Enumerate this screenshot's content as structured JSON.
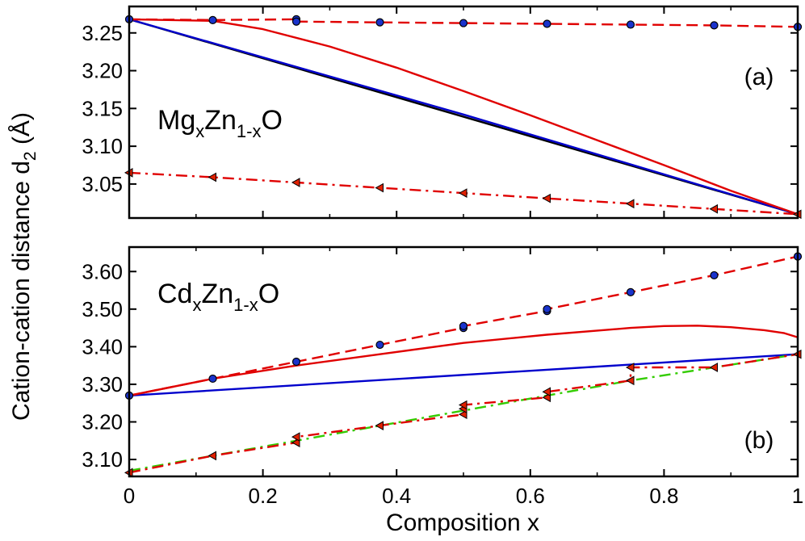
{
  "ylabel": "Cation-cation distance d",
  "ylabel_sub": "2",
  "ylabel_unit": " (Å)",
  "xlabel": "Composition x",
  "chart_data": [
    {
      "type": "line",
      "panel_label": "(a)",
      "compound": {
        "a": "Mg",
        "b": "x",
        "c": "Zn",
        "d": "1-x",
        "e": "O"
      },
      "xlim": [
        0,
        1
      ],
      "ylim": [
        3.005,
        3.285
      ],
      "x_ticks": [
        0,
        0.2,
        0.4,
        0.6,
        0.8,
        1
      ],
      "y_ticks": [
        3.05,
        3.1,
        3.15,
        3.2,
        3.25
      ],
      "y_tick_labels": [
        "3.05",
        "3.10",
        "3.15",
        "3.20",
        "3.25"
      ],
      "series": [
        {
          "color": "#000000",
          "style": "solid",
          "x": [
            0,
            1
          ],
          "y": [
            3.268,
            3.01
          ]
        },
        {
          "color": "#0000cc",
          "style": "solid",
          "x": [
            0,
            0.5,
            1
          ],
          "y": [
            3.268,
            3.142,
            3.01
          ]
        },
        {
          "color": "#e00000",
          "style": "solid",
          "x": [
            0,
            0.125,
            0.2,
            0.3,
            0.4,
            0.5,
            0.6,
            0.7,
            0.8,
            0.9,
            1
          ],
          "y": [
            3.268,
            3.266,
            3.255,
            3.232,
            3.204,
            3.173,
            3.141,
            3.108,
            3.075,
            3.041,
            3.01
          ]
        },
        {
          "color": "#e00000",
          "style": "dashed",
          "marker": "circle",
          "x": [
            0,
            0.125,
            0.25,
            0.25,
            0.375,
            0.5,
            0.625,
            0.75,
            0.875,
            1
          ],
          "y": [
            3.268,
            3.267,
            3.268,
            3.265,
            3.264,
            3.263,
            3.262,
            3.261,
            3.26,
            3.258
          ]
        },
        {
          "color": "#e00000",
          "style": "dashdot",
          "marker": "triangle",
          "x": [
            0,
            0.125,
            0.25,
            0.375,
            0.5,
            0.625,
            0.75,
            0.875,
            1
          ],
          "y": [
            3.065,
            3.059,
            3.052,
            3.045,
            3.038,
            3.031,
            3.024,
            3.017,
            3.01
          ]
        }
      ]
    },
    {
      "type": "line",
      "panel_label": "(b)",
      "compound": {
        "a": "Cd",
        "b": "x",
        "c": "Zn",
        "d": "1-x",
        "e": "O"
      },
      "xlim": [
        0,
        1
      ],
      "ylim": [
        3.055,
        3.665
      ],
      "x_ticks": [
        0,
        0.2,
        0.4,
        0.6,
        0.8,
        1
      ],
      "x_tick_labels": [
        "0",
        "0.2",
        "0.4",
        "0.6",
        "0.8",
        "1"
      ],
      "y_ticks": [
        3.1,
        3.2,
        3.3,
        3.4,
        3.5,
        3.6
      ],
      "y_tick_labels": [
        "3.10",
        "3.20",
        "3.30",
        "3.40",
        "3.50",
        "3.60"
      ],
      "series": [
        {
          "color": "#0000cc",
          "style": "solid",
          "x": [
            0,
            1
          ],
          "y": [
            3.27,
            3.38
          ]
        },
        {
          "color": "#e00000",
          "style": "solid",
          "x": [
            0,
            0.125,
            0.25,
            0.375,
            0.5,
            0.625,
            0.75,
            0.8,
            0.85,
            0.9,
            0.95,
            0.98,
            1
          ],
          "y": [
            3.27,
            3.315,
            3.35,
            3.38,
            3.41,
            3.432,
            3.45,
            3.455,
            3.456,
            3.452,
            3.444,
            3.436,
            3.425
          ]
        },
        {
          "color": "#e00000",
          "style": "dashed",
          "marker": "circle",
          "x": [
            0,
            0.125,
            0.25,
            0.375,
            0.5,
            0.5,
            0.625,
            0.625,
            0.75,
            0.875,
            1
          ],
          "y": [
            3.27,
            3.315,
            3.36,
            3.405,
            3.45,
            3.455,
            3.495,
            3.5,
            3.545,
            3.59,
            3.64
          ]
        },
        {
          "color": "#33cc00",
          "style": "dashdot",
          "x": [
            0,
            0.25,
            0.5,
            0.75,
            1
          ],
          "y": [
            3.07,
            3.15,
            3.23,
            3.31,
            3.38
          ]
        },
        {
          "color": "#e00000",
          "style": "dashdot",
          "marker": "triangle",
          "x": [
            0,
            0.125,
            0.25,
            0.25,
            0.375,
            0.5,
            0.5,
            0.5,
            0.625,
            0.625,
            0.75,
            0.75,
            0.875,
            1
          ],
          "y": [
            3.065,
            3.11,
            3.145,
            3.16,
            3.19,
            3.22,
            3.235,
            3.245,
            3.265,
            3.28,
            3.31,
            3.345,
            3.345,
            3.38
          ]
        }
      ]
    }
  ]
}
